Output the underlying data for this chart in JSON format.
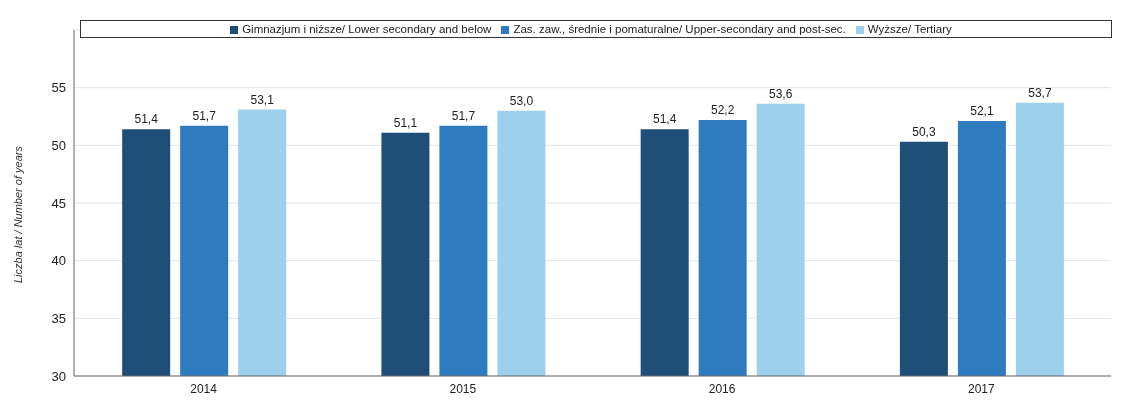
{
  "chart_data": {
    "type": "bar",
    "ylabel": "Liczba lat / Number of years",
    "categories": [
      "2014",
      "2015",
      "2016",
      "2017"
    ],
    "series": [
      {
        "name": "Gimnazjum i niższe/ Lower secondary and below",
        "color": "#1f4e79",
        "values": [
          51.4,
          51.1,
          51.4,
          50.3
        ],
        "value_labels": [
          "51,4",
          "51,1",
          "51,4",
          "50,3"
        ]
      },
      {
        "name": "Zas. zaw., średnie i pomaturalne/ Upper-secondary and post-sec.",
        "color": "#2e7bbf",
        "values": [
          51.7,
          51.7,
          52.2,
          52.1
        ],
        "value_labels": [
          "51,7",
          "51,7",
          "52,2",
          "52,1"
        ]
      },
      {
        "name": "Wyższe/ Tertiary",
        "color": "#9dd0ec",
        "values": [
          53.1,
          53.0,
          53.6,
          53.7
        ],
        "value_labels": [
          "53,1",
          "53,0",
          "53,6",
          "53,7"
        ]
      }
    ],
    "ylim": [
      30,
      60
    ],
    "yticks": [
      30,
      35,
      40,
      45,
      50,
      55
    ],
    "grid": "y",
    "legend": "top"
  }
}
